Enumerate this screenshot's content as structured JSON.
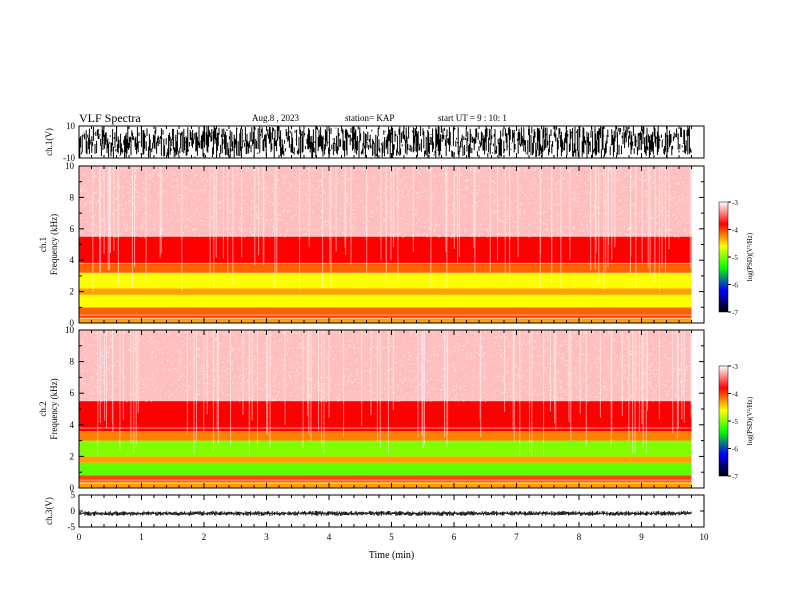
{
  "header": {
    "title": "VLF Spectra",
    "date": "Aug.8 , 2023",
    "station": "station= KAP",
    "start": "start UT = 9 : 10: 1"
  },
  "chart_data": [
    {
      "type": "line",
      "name": "ch1-waveform",
      "ylabel": "ch.1(V)",
      "ylim": [
        -10,
        10
      ],
      "y_tick_labels": [
        "10",
        "-10"
      ],
      "xlim": [
        0,
        10
      ],
      "amplitude_range": [
        -10,
        10
      ],
      "line_color": "#000000"
    },
    {
      "type": "heatmap",
      "name": "ch1-spectrogram",
      "ylabel": "ch.1\nFrequency (kHz)",
      "ylim": [
        0,
        10
      ],
      "y_ticks": [
        0,
        2,
        4,
        6,
        8,
        10
      ],
      "xlim": [
        0,
        10
      ],
      "data_end_min": 9.8,
      "bands": [
        {
          "f_from": 0,
          "f_to": 0.3,
          "level": -4.3
        },
        {
          "f_from": 0.3,
          "f_to": 0.5,
          "level": -4.0
        },
        {
          "f_from": 0.5,
          "f_to": 1.0,
          "level": -4.1
        },
        {
          "f_from": 1.0,
          "f_to": 1.8,
          "level": -4.6
        },
        {
          "f_from": 1.8,
          "f_to": 2.2,
          "level": -4.3
        },
        {
          "f_from": 2.2,
          "f_to": 3.2,
          "level": -4.6
        },
        {
          "f_from": 3.2,
          "f_to": 3.8,
          "level": -4.1
        },
        {
          "f_from": 3.8,
          "f_to": 5.5,
          "level": -3.8
        },
        {
          "f_from": 5.5,
          "f_to": 10,
          "level": -3.2
        }
      ],
      "colorbar": {
        "label": "log(PSD)(V²/Hz)",
        "range": [
          -7,
          -3
        ],
        "tick_labels": [
          "-3",
          "-4",
          "-5",
          "-6",
          "-7"
        ],
        "colors": [
          "#ffffff",
          "#ff0000",
          "#ffff00",
          "#00ff00",
          "#0000ff",
          "#000000"
        ]
      }
    },
    {
      "type": "heatmap",
      "name": "ch2-spectrogram",
      "ylabel": "ch.2\nFrequency (kHz)",
      "ylim": [
        0,
        10
      ],
      "y_ticks": [
        0,
        2,
        4,
        6,
        8,
        10
      ],
      "xlim": [
        0,
        10
      ],
      "data_end_min": 9.8,
      "bands": [
        {
          "f_from": 0,
          "f_to": 0.4,
          "level": -4.3
        },
        {
          "f_from": 0.4,
          "f_to": 0.8,
          "level": -4.0
        },
        {
          "f_from": 0.8,
          "f_to": 1.6,
          "level": -5.1
        },
        {
          "f_from": 1.6,
          "f_to": 2.0,
          "level": -4.3
        },
        {
          "f_from": 2.0,
          "f_to": 3.0,
          "level": -5.0
        },
        {
          "f_from": 3.0,
          "f_to": 3.6,
          "level": -4.2
        },
        {
          "f_from": 3.6,
          "f_to": 5.5,
          "level": -3.8
        },
        {
          "f_from": 5.5,
          "f_to": 10,
          "level": -3.2
        }
      ],
      "colorbar": {
        "label": "log(PSD)(V²/Hz)",
        "range": [
          -7,
          -3
        ],
        "tick_labels": [
          "-3",
          "-4",
          "-5",
          "-6",
          "-7"
        ],
        "colors": [
          "#ffffff",
          "#ff0000",
          "#ffff00",
          "#00ff00",
          "#0000ff",
          "#000000"
        ]
      }
    },
    {
      "type": "line",
      "name": "ch3-waveform",
      "ylabel": "ch.3(V)",
      "ylim": [
        -5,
        5
      ],
      "y_tick_labels": [
        "5",
        "0",
        "-5"
      ],
      "xlim": [
        0,
        10
      ],
      "amplitude_range": [
        -1.5,
        0
      ],
      "line_color": "#000000"
    },
    {
      "type": "axis",
      "name": "time-axis",
      "xlabel": "Time (min)",
      "xlim": [
        0,
        10
      ],
      "x_ticks": [
        "0",
        "1",
        "2",
        "3",
        "4",
        "5",
        "6",
        "7",
        "8",
        "9",
        "10"
      ]
    }
  ]
}
